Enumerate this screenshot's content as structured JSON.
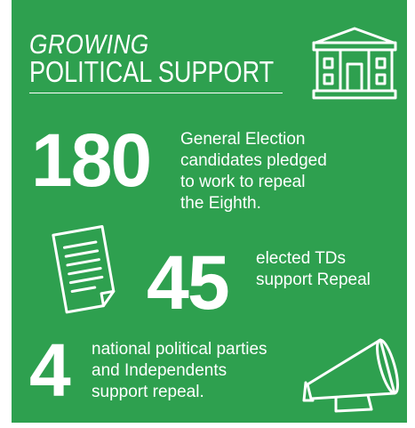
{
  "title": {
    "line1": "GROWING",
    "line2": "POLITICAL SUPPORT"
  },
  "stats": [
    {
      "number": "180",
      "text": "General Election\ncandidates pledged\nto work to repeal\nthe Eighth."
    },
    {
      "number": "45",
      "text": "elected TDs\nsupport Repeal"
    },
    {
      "number": "4",
      "text": "national political parties\nand Independents\nsupport repeal."
    }
  ],
  "icons": [
    "government-building-icon",
    "document-icon",
    "megaphone-icon"
  ],
  "colors": {
    "background": "#2ea04f",
    "foreground": "#ffffff"
  }
}
